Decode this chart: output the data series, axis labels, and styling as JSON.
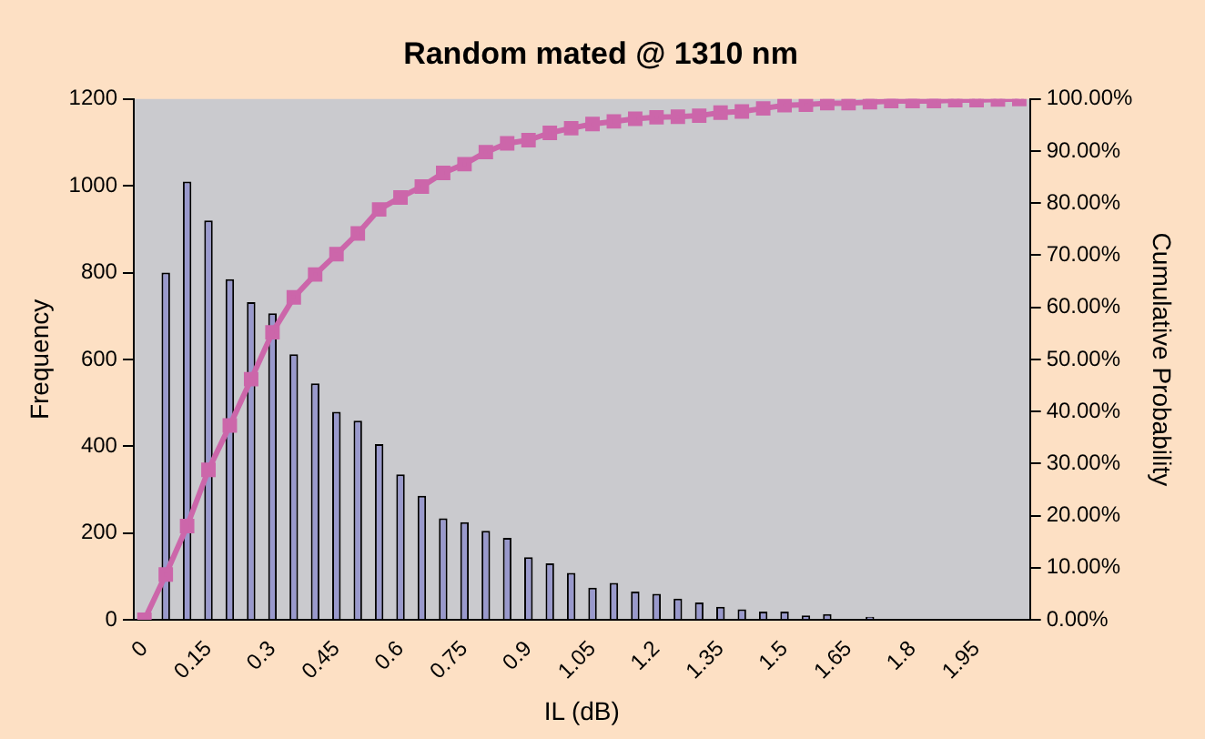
{
  "chart_data": {
    "type": "bar",
    "title": "Random mated @ 1310 nm",
    "xlabel": "IL (dB)",
    "ylabel": "Frequency",
    "y2label": "Cumulative Probability",
    "categories": [
      "0",
      null,
      null,
      "0.15",
      null,
      null,
      "0.3",
      null,
      null,
      "0.45",
      null,
      null,
      "0.6",
      null,
      null,
      "0.75",
      null,
      null,
      "0.9",
      null,
      null,
      "1.05",
      null,
      null,
      "1.2",
      null,
      null,
      "1.35",
      null,
      null,
      "1.5",
      null,
      null,
      "1.65",
      null,
      null,
      "1.8",
      null,
      null,
      "1.95",
      null,
      null
    ],
    "series": [
      {
        "color": "#9999cc",
        "values": [
          null,
          800,
          1010,
          920,
          785,
          732,
          706,
          612,
          545,
          479,
          459,
          405,
          335,
          286,
          234,
          225,
          205,
          189,
          144,
          130,
          108,
          74,
          85,
          65,
          60,
          49,
          40,
          30,
          24,
          19,
          19,
          10,
          13,
          null,
          7,
          2,
          2,
          null,
          null,
          null,
          0,
          0
        ]
      },
      {
        "type": "line",
        "color": "#cc66aa",
        "axis": "y2",
        "marker": "square",
        "values": [
          0,
          8.7,
          18,
          28.8,
          37.3,
          46.2,
          55.2,
          61.9,
          66.3,
          70.2,
          74.2,
          78.8,
          81.1,
          83.2,
          85.8,
          87.5,
          89.8,
          91.5,
          92.1,
          93.5,
          94.4,
          95.2,
          95.7,
          96.2,
          96.5,
          96.6,
          96.8,
          97.4,
          97.6,
          98.2,
          98.8,
          98.9,
          99.2,
          99.2,
          99.4,
          99.6,
          99.6,
          99.6,
          99.8,
          99.8,
          99.9,
          100
        ]
      }
    ],
    "ylim": [
      0,
      1200
    ],
    "yticks": [
      0,
      200,
      400,
      600,
      800,
      1000,
      1200
    ],
    "y2lim": [
      0,
      100
    ],
    "y2ticks": [
      {
        "value": 0,
        "label": "0.00%"
      },
      {
        "value": 10,
        "label": "10.00%"
      },
      {
        "value": 20,
        "label": "20.00%"
      },
      {
        "value": 30,
        "label": "30.00%"
      },
      {
        "value": 40,
        "label": "40.00%"
      },
      {
        "value": 50,
        "label": "50.00%"
      },
      {
        "value": 60,
        "label": "60.00%"
      },
      {
        "value": 70,
        "label": "70.00%"
      },
      {
        "value": 80,
        "label": "80.00%"
      },
      {
        "value": 90,
        "label": "90.00%"
      },
      {
        "value": 100,
        "label": "100.00%"
      }
    ]
  }
}
